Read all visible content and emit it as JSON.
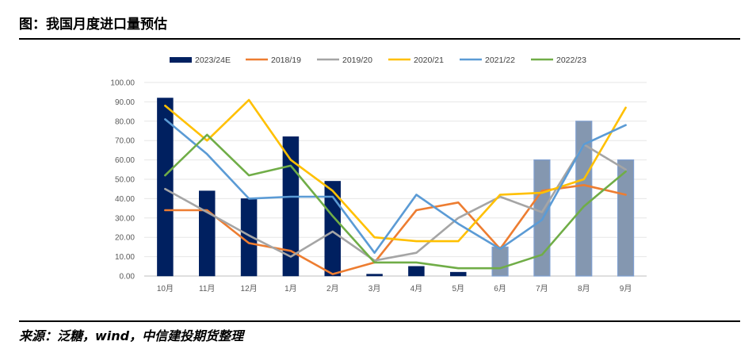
{
  "figure": {
    "title": "图：我国月度进口量预估",
    "source": "来源：泛糖，wind，中信建投期货整理"
  },
  "chart_data": {
    "type": "bar+line",
    "title": "我国月度进口量预估",
    "xlabel": "",
    "ylabel": "",
    "ylim": [
      0,
      100
    ],
    "ytick_labels": [
      "0.00",
      "10.00",
      "20.00",
      "30.00",
      "40.00",
      "50.00",
      "60.00",
      "70.00",
      "80.00",
      "90.00",
      "100.00"
    ],
    "categories": [
      "10月",
      "11月",
      "12月",
      "1月",
      "2月",
      "3月",
      "4月",
      "5月",
      "6月",
      "7月",
      "8月",
      "9月"
    ],
    "bar_series": {
      "name": "2023/24E",
      "values": [
        92,
        44,
        40,
        72,
        49,
        1,
        5,
        2,
        15,
        60,
        80,
        60
      ],
      "actual_color": "#002060",
      "estimate_color": "#8497B0",
      "estimate_border": "#7F9FD0",
      "estimate_from_index": 8
    },
    "line_series": [
      {
        "name": "2018/19",
        "color": "#ED7D31",
        "values": [
          34,
          34,
          17,
          13,
          1,
          7,
          34,
          38,
          14,
          44,
          47,
          42
        ]
      },
      {
        "name": "2019/20",
        "color": "#A5A5A5",
        "values": [
          45,
          33,
          21,
          10,
          23,
          8,
          12,
          30,
          41,
          33,
          68,
          55
        ]
      },
      {
        "name": "2020/21",
        "color": "#FFC000",
        "values": [
          88,
          70,
          91,
          60,
          44,
          20,
          18,
          18,
          42,
          43,
          50,
          87
        ]
      },
      {
        "name": "2021/22",
        "color": "#5B9BD5",
        "values": [
          81,
          63,
          40,
          41,
          41,
          12,
          42,
          27,
          14,
          29,
          68,
          78
        ]
      },
      {
        "name": "2022/23",
        "color": "#70AD47",
        "values": [
          52,
          73,
          52,
          57,
          31,
          7,
          7,
          4,
          4,
          11,
          36,
          54
        ]
      }
    ],
    "legend_position": "top"
  }
}
